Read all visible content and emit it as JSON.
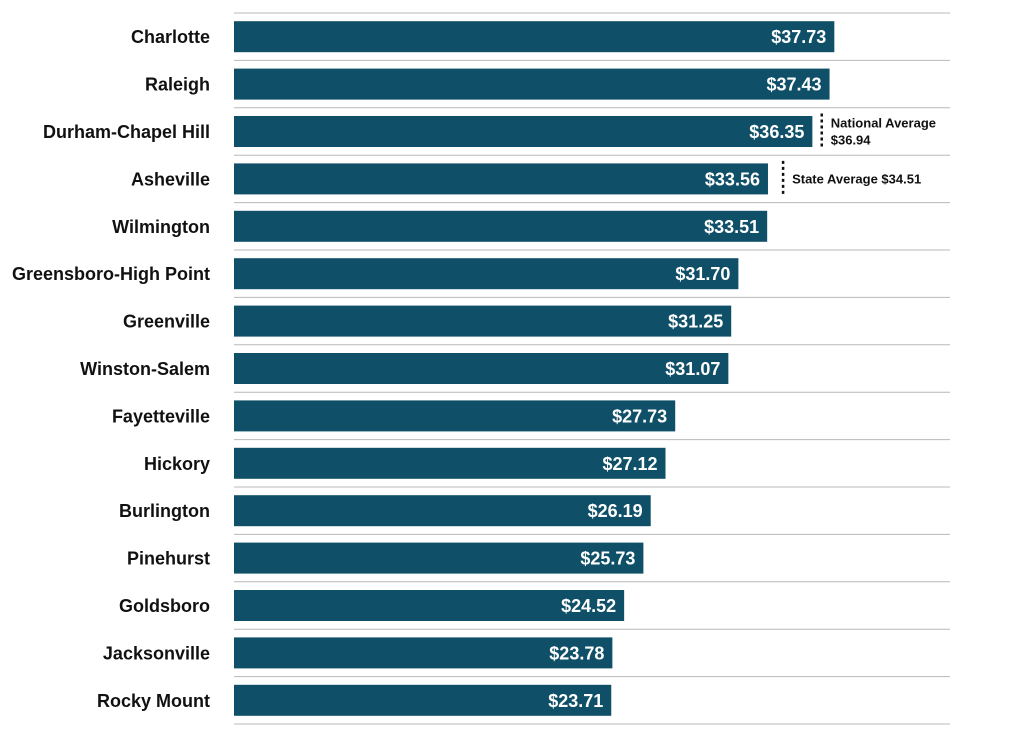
{
  "chart_data": {
    "type": "bar",
    "orientation": "horizontal",
    "title": "",
    "xlabel": "",
    "ylabel": "",
    "categories": [
      "Charlotte",
      "Raleigh",
      "Durham-Chapel Hill",
      "Asheville",
      "Wilmington",
      "Greensboro-High Point",
      "Greenville",
      "Winston-Salem",
      "Fayetteville",
      "Hickory",
      "Burlington",
      "Pinehurst",
      "Goldsboro",
      "Jacksonville",
      "Rocky Mount"
    ],
    "values": [
      37.73,
      37.43,
      36.35,
      33.56,
      33.51,
      31.7,
      31.25,
      31.07,
      27.73,
      27.12,
      26.19,
      25.73,
      24.52,
      23.78,
      23.71
    ],
    "value_labels": [
      "$37.73",
      "$37.43",
      "$36.35",
      "$33.56",
      "$33.51",
      "$31.70",
      "$31.25",
      "$31.07",
      "$27.73",
      "$27.12",
      "$26.19",
      "$25.73",
      "$24.52",
      "$23.78",
      "$23.71"
    ],
    "xlim": [
      0,
      45
    ],
    "grid": "horizontal separators between categories",
    "legend": "none",
    "bar_color": "#0f5068",
    "reference_lines": [
      {
        "name": "National Average",
        "value": 36.94,
        "label_lines": [
          "National Average",
          "$36.94"
        ],
        "near_category": "Durham-Chapel Hill"
      },
      {
        "name": "State Average",
        "value": 34.51,
        "label_lines": [
          "State Average $34.51"
        ],
        "near_category": "Asheville"
      }
    ]
  }
}
